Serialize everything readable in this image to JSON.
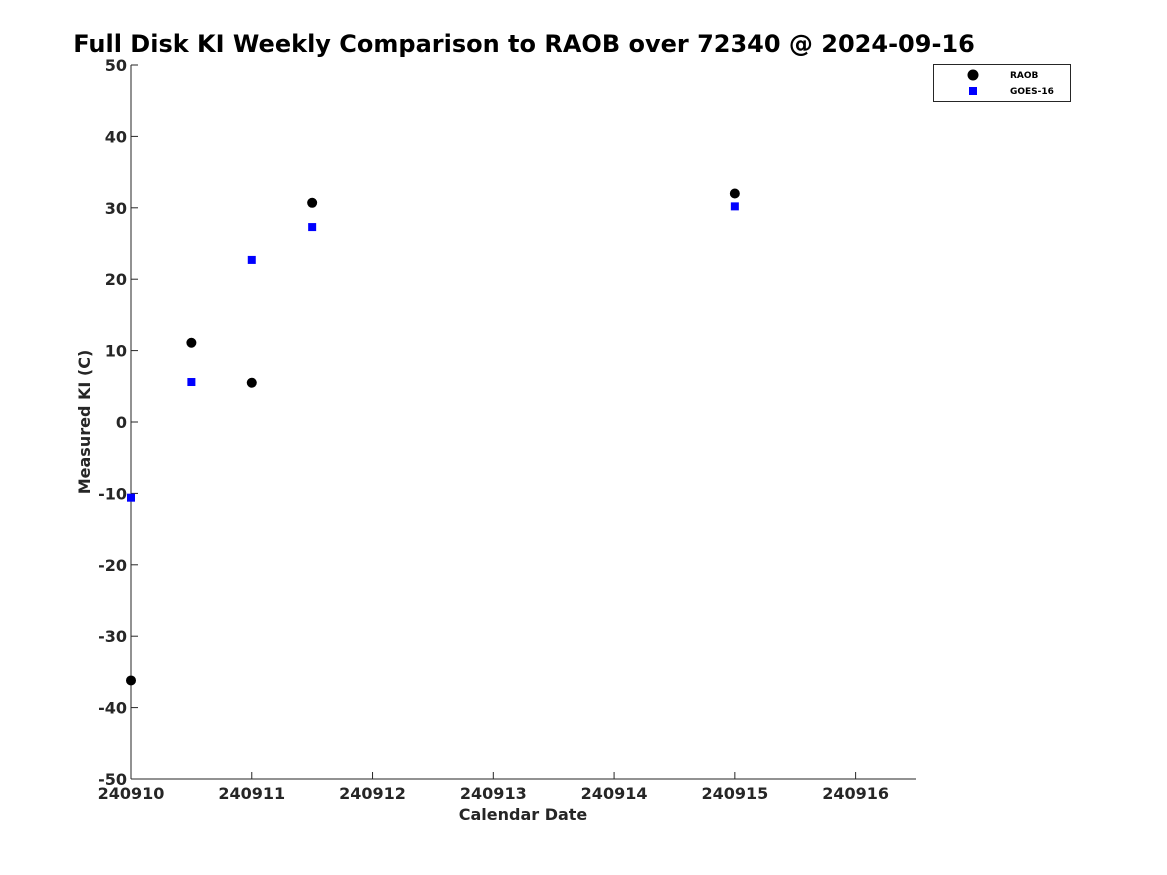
{
  "chart_data": {
    "type": "scatter",
    "title": "Full Disk KI Weekly Comparison to RAOB over 72340 @ 2024-09-16",
    "xlabel": "Calendar Date",
    "ylabel": "Measured KI (C)",
    "xlim": [
      240910,
      240916.5
    ],
    "ylim": [
      -50,
      50
    ],
    "x_ticks": [
      "240910",
      "240911",
      "240912",
      "240913",
      "240914",
      "240915",
      "240916"
    ],
    "y_ticks": [
      "50",
      "40",
      "30",
      "20",
      "10",
      "0",
      "-10",
      "-20",
      "-30",
      "-40",
      "-50"
    ],
    "legend_position": "top-right",
    "grid": false,
    "series": [
      {
        "name": "RAOB",
        "marker": "circle",
        "color": "#000000",
        "points": [
          {
            "x": 240910.0,
            "y": -36.2
          },
          {
            "x": 240910.5,
            "y": 11.1
          },
          {
            "x": 240911.0,
            "y": 5.5
          },
          {
            "x": 240911.5,
            "y": 30.7
          },
          {
            "x": 240915.0,
            "y": 32.0
          }
        ]
      },
      {
        "name": "GOES-16",
        "marker": "square",
        "color": "#0000ff",
        "points": [
          {
            "x": 240910.0,
            "y": -10.6
          },
          {
            "x": 240910.5,
            "y": 5.6
          },
          {
            "x": 240911.0,
            "y": 22.7
          },
          {
            "x": 240911.5,
            "y": 27.3
          },
          {
            "x": 240915.0,
            "y": 30.2
          }
        ]
      }
    ]
  }
}
